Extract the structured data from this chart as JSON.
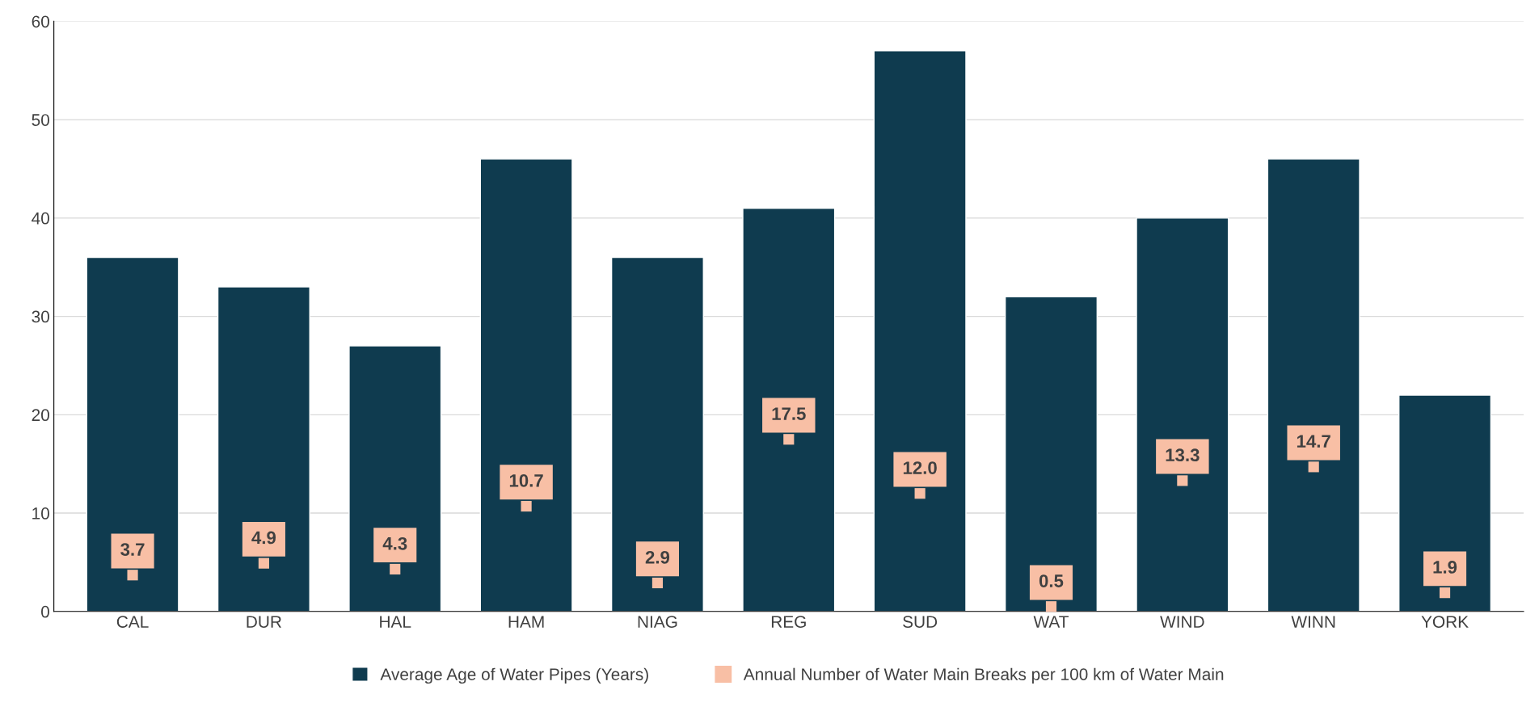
{
  "chart_data": {
    "type": "bar",
    "categories": [
      "CAL",
      "DUR",
      "HAL",
      "HAM",
      "NIAG",
      "REG",
      "SUD",
      "WAT",
      "WIND",
      "WINN",
      "YORK"
    ],
    "series": [
      {
        "name": "Average Age of Water Pipes (Years)",
        "color": "#0f3b4f",
        "values": [
          36,
          33,
          27,
          46,
          36,
          41,
          57,
          32,
          40,
          46,
          22
        ]
      },
      {
        "name": "Annual Number of Water Main Breaks per 100 km of Water Main",
        "type": "scatter",
        "marker": "square",
        "color": "#f8bfa5",
        "values": [
          3.7,
          4.9,
          4.3,
          10.7,
          2.9,
          17.5,
          12.0,
          0.5,
          13.3,
          14.7,
          1.9
        ],
        "value_labels": [
          "3.7",
          "4.9",
          "4.3",
          "10.7",
          "2.9",
          "17.5",
          "12.0",
          "0.5",
          "13.3",
          "14.7",
          "1.9"
        ]
      }
    ],
    "ylim": [
      0,
      60
    ],
    "yticks": [
      0,
      10,
      20,
      30,
      40,
      50,
      60
    ],
    "grid": "y",
    "legend": "bottom"
  }
}
